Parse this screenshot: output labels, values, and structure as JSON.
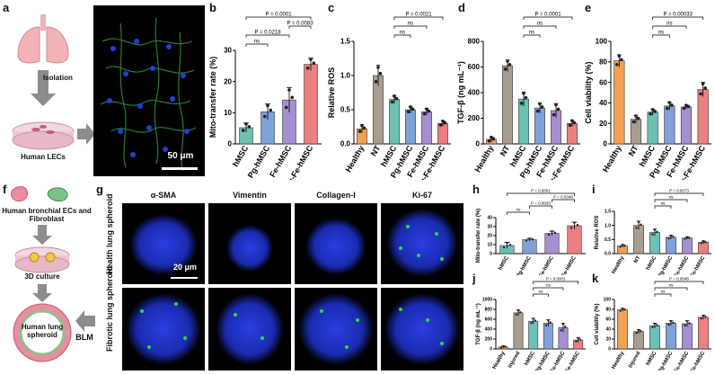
{
  "panels": {
    "a": "a",
    "b": "b",
    "c": "c",
    "d": "d",
    "e": "e",
    "f": "f",
    "g": "g",
    "h": "h",
    "i": "i",
    "j": "j",
    "k": "k"
  },
  "scheme_a": {
    "step": "Isolation",
    "result": "Human LECs",
    "scale_bar": "50 μm"
  },
  "scheme_f": {
    "source": "Human bronchial ECs and Fibroblast",
    "step": "3D culture",
    "result": "Human lung spheroid",
    "treatment": "BLM"
  },
  "panel_g": {
    "columns": [
      "α-SMA",
      "Vimentin",
      "Collagen-I",
      "Ki-67"
    ],
    "rows": [
      "Health lung spheroid",
      "Fibrotic lung spheroid"
    ],
    "scale_bar": "20 μm"
  },
  "chart_data": [
    {
      "panel": "b",
      "type": "bar",
      "ylabel": "Mito-transfer rate (%)",
      "ylim": [
        0,
        30
      ],
      "yticks": [
        0,
        10,
        20,
        30
      ],
      "categories": [
        "hMSC",
        "Pg-hMSC",
        "Fe-hMSC",
        "Pg-Fe-hMSC"
      ],
      "values": [
        5.2,
        10.3,
        14.1,
        25.5
      ],
      "errors": [
        1.5,
        2.5,
        4.0,
        2.0
      ],
      "colors": [
        "#6cc1b3",
        "#7fa1d8",
        "#a68fd0",
        "#ec7f80"
      ],
      "annotations": [
        {
          "from": 0,
          "to": 3,
          "text": "P = 0.0001"
        },
        {
          "from": 2,
          "to": 3,
          "text": "P = 0.0083"
        },
        {
          "from": 0,
          "to": 2,
          "text": "P = 0.0218"
        },
        {
          "from": 0,
          "to": 1,
          "text": "ns"
        }
      ]
    },
    {
      "panel": "c",
      "type": "bar",
      "ylabel": "Relative ROS",
      "ylim": [
        0,
        1.5
      ],
      "yticks": [
        0.0,
        0.5,
        1.0,
        1.5
      ],
      "categories": [
        "Healthy",
        "NT",
        "hMSC",
        "Pg-hMSC",
        "Fe-hMSC",
        "Pg-Fe-hMSC"
      ],
      "values": [
        0.22,
        1.0,
        0.65,
        0.5,
        0.47,
        0.3
      ],
      "errors": [
        0.06,
        0.15,
        0.06,
        0.05,
        0.05,
        0.04
      ],
      "colors": [
        "#f2a154",
        "#a79e8f",
        "#6cc1b3",
        "#7fa1d8",
        "#a68fd0",
        "#ec7f80"
      ],
      "annotations": [
        {
          "from": 2,
          "to": 5,
          "text": "P = 0.0021"
        },
        {
          "from": 2,
          "to": 4,
          "text": "ns"
        },
        {
          "from": 2,
          "to": 3,
          "text": "ns"
        }
      ]
    },
    {
      "panel": "d",
      "type": "bar",
      "ylabel": "TGF-β (ng mL⁻¹)",
      "ylim": [
        0,
        800
      ],
      "yticks": [
        0,
        200,
        400,
        600,
        800
      ],
      "categories": [
        "Healthy",
        "NT",
        "hMSC",
        "Pg-hMSC",
        "Fe-hMSC",
        "Pg-Fe-hMSC"
      ],
      "values": [
        35,
        610,
        350,
        280,
        260,
        160
      ],
      "errors": [
        20,
        45,
        55,
        40,
        55,
        25
      ],
      "colors": [
        "#f2a154",
        "#a79e8f",
        "#6cc1b3",
        "#7fa1d8",
        "#a68fd0",
        "#ec7f80"
      ],
      "annotations": [
        {
          "from": 2,
          "to": 5,
          "text": "P = 0.0001"
        },
        {
          "from": 2,
          "to": 4,
          "text": "ns"
        },
        {
          "from": 2,
          "to": 3,
          "text": "ns"
        }
      ]
    },
    {
      "panel": "e",
      "type": "bar",
      "ylabel": "Cell viability (%)",
      "ylim": [
        0,
        100
      ],
      "yticks": [
        0,
        20,
        40,
        60,
        80,
        100
      ],
      "categories": [
        "Healthy",
        "NT",
        "hMSC",
        "Pg-hMSC",
        "Fe-hMSC",
        "Pg-Fe-hMSC"
      ],
      "values": [
        81,
        24,
        31,
        37,
        36,
        53
      ],
      "errors": [
        6,
        4,
        3,
        4,
        2,
        7
      ],
      "colors": [
        "#f2a154",
        "#a79e8f",
        "#6cc1b3",
        "#7fa1d8",
        "#a68fd0",
        "#ec7f80"
      ],
      "annotations": [
        {
          "from": 2,
          "to": 5,
          "text": "P = 0.00033"
        },
        {
          "from": 2,
          "to": 4,
          "text": "ns"
        },
        {
          "from": 2,
          "to": 3,
          "text": "ns"
        }
      ]
    },
    {
      "panel": "h",
      "type": "bar",
      "ylabel": "Mito-transfer rate (%)",
      "ylim": [
        0,
        40
      ],
      "yticks": [
        0,
        10,
        20,
        30,
        40
      ],
      "categories": [
        "hMSC",
        "Pg-hMSC",
        "Fe-hMSC",
        "Pg-Fe-hMSC"
      ],
      "values": [
        9.0,
        15.5,
        22.5,
        31.0
      ],
      "errors": [
        3.5,
        1.5,
        2.5,
        4.0
      ],
      "colors": [
        "#6cc1b3",
        "#7fa1d8",
        "#a68fd0",
        "#ec7f80"
      ],
      "annotations": [
        {
          "from": 0,
          "to": 3,
          "text": "P = 0.0001"
        },
        {
          "from": 2,
          "to": 3,
          "text": "P = 0.0348"
        },
        {
          "from": 1,
          "to": 2,
          "text": "P = 0.0033"
        },
        {
          "from": 0,
          "to": 1,
          "text": "ns"
        }
      ]
    },
    {
      "panel": "i",
      "type": "bar",
      "ylabel": "Relative ROS",
      "ylim": [
        0,
        1.5
      ],
      "yticks": [
        0.0,
        0.5,
        1.0,
        1.5
      ],
      "categories": [
        "Healthy",
        "NT",
        "hMSC",
        "Pg-hMSC",
        "Fe-hMSC",
        "Pg-Fe-hMSC"
      ],
      "values": [
        0.27,
        1.0,
        0.75,
        0.58,
        0.55,
        0.4
      ],
      "errors": [
        0.05,
        0.15,
        0.12,
        0.07,
        0.04,
        0.05
      ],
      "colors": [
        "#f2a154",
        "#a79e8f",
        "#6cc1b3",
        "#7fa1d8",
        "#a68fd0",
        "#ec7f80"
      ],
      "annotations": [
        {
          "from": 2,
          "to": 5,
          "text": "P = 0.0073"
        },
        {
          "from": 2,
          "to": 4,
          "text": "ns"
        },
        {
          "from": 2,
          "to": 3,
          "text": "ns"
        }
      ]
    },
    {
      "panel": "j",
      "type": "bar",
      "ylabel": "TGF-β (ng mL⁻¹)",
      "ylim": [
        0,
        1000
      ],
      "yticks": [
        0,
        200,
        400,
        600,
        800,
        1000
      ],
      "categories": [
        "Healthy",
        "Injured",
        "hMSC",
        "Pg-hMSC",
        "Fe-hMSC",
        "Pg-Fe-hMSC"
      ],
      "values": [
        40,
        730,
        560,
        520,
        430,
        180
      ],
      "errors": [
        20,
        60,
        60,
        70,
        90,
        50
      ],
      "colors": [
        "#f2a154",
        "#a79e8f",
        "#6cc1b3",
        "#7fa1d8",
        "#a68fd0",
        "#ec7f80"
      ],
      "annotations": [
        {
          "from": 2,
          "to": 5,
          "text": "P = 0.0001"
        },
        {
          "from": 2,
          "to": 4,
          "text": "ns"
        },
        {
          "from": 2,
          "to": 3,
          "text": "ns"
        }
      ]
    },
    {
      "panel": "k",
      "type": "bar",
      "ylabel": "Cell viability (%)",
      "ylim": [
        0,
        100
      ],
      "yticks": [
        0,
        20,
        40,
        60,
        80,
        100
      ],
      "categories": [
        "Healthy",
        "Injured",
        "hMSC",
        "Pg-hMSC",
        "Fe-hMSC",
        "Pg-Fe-hMSC"
      ],
      "values": [
        79,
        35,
        47,
        52,
        51,
        64
      ],
      "errors": [
        3,
        4,
        5,
        5,
        6,
        4
      ],
      "colors": [
        "#f2a154",
        "#a79e8f",
        "#6cc1b3",
        "#7fa1d8",
        "#a68fd0",
        "#ec7f80"
      ],
      "annotations": [
        {
          "from": 2,
          "to": 5,
          "text": "P = 0.0046"
        },
        {
          "from": 2,
          "to": 4,
          "text": "ns"
        },
        {
          "from": 2,
          "to": 3,
          "text": "ns"
        }
      ]
    }
  ]
}
